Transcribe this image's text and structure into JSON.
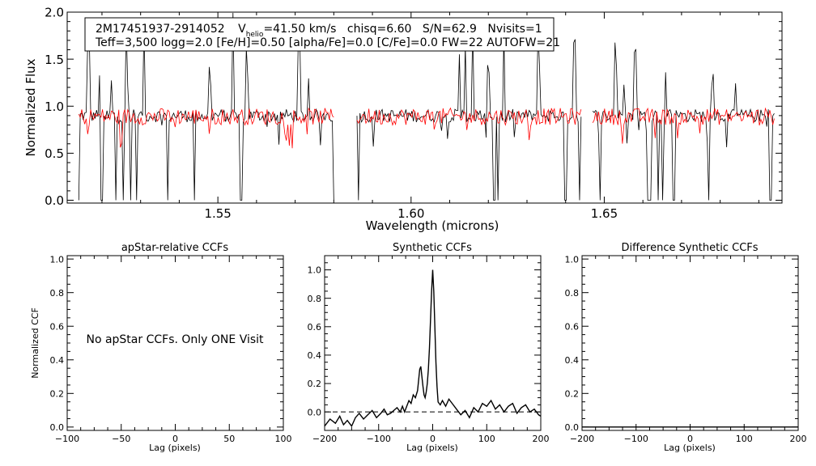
{
  "chart_data": [
    {
      "type": "line",
      "id": "spectrum",
      "header_line1": {
        "star": "2M17451937-2914052",
        "vhelio_prefix": "V",
        "vhelio_sub": "helio",
        "vhelio_value": "=41.50 km/s",
        "chisq": "chisq=6.60",
        "snr": "S/N=62.9",
        "nvisits": "Nvisits=1"
      },
      "header_line2": "Teff=3,500 logg=2.0 [Fe/H]=0.50 [alpha/Fe]=0.0 [C/Fe]=0.0 FW=22 AUTOFW=21",
      "xlabel": "Wavelength (microns)",
      "ylabel": "Normalized Flux",
      "xlim": [
        1.511,
        1.696
      ],
      "ylim": [
        -0.03,
        2.0
      ],
      "xticks": [
        1.55,
        1.6,
        1.65
      ],
      "xtick_labels": [
        "1.55",
        "1.60",
        "1.65"
      ],
      "yticks": [
        0.0,
        0.5,
        1.0,
        1.5,
        2.0
      ],
      "ytick_labels": [
        "0.0",
        "0.5",
        "1.0",
        "1.5",
        "2.0"
      ],
      "chips": [
        [
          1.514,
          1.58
        ],
        [
          1.586,
          1.644
        ],
        [
          1.647,
          1.694
        ]
      ],
      "series": [
        {
          "name": "observed",
          "color": "#000000",
          "mean": 0.9,
          "noise": 0.07
        },
        {
          "name": "model",
          "color": "#ff0000",
          "mean": 0.89,
          "noise": 0.09
        }
      ],
      "spikes": [
        1.5165,
        1.5195,
        1.5225,
        1.5265,
        1.529,
        1.531,
        1.544,
        1.548,
        1.554,
        1.5575,
        1.571,
        1.5735,
        1.6125,
        1.614,
        1.616,
        1.62,
        1.624,
        1.633,
        1.642,
        1.6425,
        1.653,
        1.655,
        1.658,
        1.662,
        1.666,
        1.678,
        1.684
      ],
      "dips": [
        1.514,
        1.52,
        1.5235,
        1.5255,
        1.5275,
        1.529,
        1.537,
        1.544,
        1.556,
        1.58,
        1.5865,
        1.6215,
        1.6225,
        1.64,
        1.6435,
        1.649,
        1.6615,
        1.662,
        1.664,
        1.665,
        1.668,
        1.677,
        1.693
      ]
    },
    {
      "type": "line",
      "id": "apstar-ccf",
      "title": "apStar-relative CCFs",
      "xlabel": "Lag (pixels)",
      "ylabel": "Normalized CCF",
      "xlim": [
        -100,
        100
      ],
      "ylim": [
        -0.02,
        1.02
      ],
      "xticks": [
        -100,
        -50,
        0,
        50,
        100
      ],
      "xtick_labels": [
        "−100",
        "−50",
        "0",
        "50",
        "100"
      ],
      "yticks": [
        0.0,
        0.2,
        0.4,
        0.6,
        0.8,
        1.0
      ],
      "ytick_labels": [
        "0.0",
        "0.2",
        "0.4",
        "0.6",
        "0.8",
        "1.0"
      ],
      "note": "No apStar CCFs.  Only ONE Visit",
      "series": []
    },
    {
      "type": "line",
      "id": "synthetic-ccf",
      "title": "Synthetic CCFs",
      "xlabel": "Lag (pixels)",
      "ylabel": "",
      "xlim": [
        -200,
        200
      ],
      "ylim": [
        -0.13,
        1.1
      ],
      "xticks": [
        -200,
        -100,
        0,
        100,
        200
      ],
      "xtick_labels": [
        "−200",
        "−100",
        "0",
        "100",
        "200"
      ],
      "yticks": [
        0.0,
        0.2,
        0.4,
        0.6,
        0.8,
        1.0
      ],
      "ytick_labels": [
        "0.0",
        "0.2",
        "0.4",
        "0.6",
        "0.8",
        "1.0"
      ],
      "zero_line": true,
      "series": [
        {
          "name": "ccf",
          "color": "#000000",
          "x": [
            -200,
            -190,
            -180,
            -172,
            -165,
            -158,
            -150,
            -143,
            -136,
            -128,
            -120,
            -112,
            -104,
            -96,
            -90,
            -84,
            -78,
            -72,
            -66,
            -60,
            -56,
            -52,
            -48,
            -44,
            -40,
            -36,
            -32,
            -28,
            -24,
            -22,
            -20,
            -18,
            -16,
            -14,
            -12,
            -10,
            -8,
            -6,
            -4,
            -2,
            0,
            2,
            4,
            6,
            8,
            10,
            14,
            18,
            24,
            30,
            36,
            44,
            52,
            60,
            68,
            76,
            84,
            92,
            100,
            108,
            116,
            124,
            132,
            140,
            148,
            156,
            164,
            172,
            180,
            188,
            196,
            200
          ],
          "y": [
            -0.1,
            -0.05,
            -0.08,
            -0.03,
            -0.09,
            -0.06,
            -0.1,
            -0.04,
            -0.01,
            -0.05,
            -0.02,
            0.01,
            -0.04,
            -0.01,
            0.02,
            -0.02,
            -0.01,
            0.01,
            0.03,
            0.0,
            0.04,
            0.0,
            0.04,
            0.08,
            0.06,
            0.12,
            0.1,
            0.15,
            0.3,
            0.32,
            0.25,
            0.18,
            0.12,
            0.1,
            0.14,
            0.2,
            0.3,
            0.45,
            0.65,
            0.85,
            1.0,
            0.85,
            0.6,
            0.35,
            0.18,
            0.07,
            0.05,
            0.08,
            0.04,
            0.09,
            0.06,
            0.02,
            -0.02,
            0.01,
            -0.04,
            0.03,
            0.0,
            0.06,
            0.04,
            0.08,
            0.02,
            0.05,
            0.0,
            0.04,
            0.06,
            -0.01,
            0.03,
            0.05,
            0.0,
            0.02,
            -0.02,
            -0.03
          ]
        }
      ]
    },
    {
      "type": "line",
      "id": "difference-ccf",
      "title": "Difference Synthetic CCFs",
      "xlabel": "Lag (pixels)",
      "ylabel": "",
      "xlim": [
        -200,
        200
      ],
      "ylim": [
        -0.02,
        1.02
      ],
      "xticks": [
        -200,
        -100,
        0,
        100,
        200
      ],
      "xtick_labels": [
        "−200",
        "−100",
        "0",
        "100",
        "200"
      ],
      "yticks": [
        0.0,
        0.2,
        0.4,
        0.6,
        0.8,
        1.0
      ],
      "ytick_labels": [
        "0.0",
        "0.2",
        "0.4",
        "0.6",
        "0.8",
        "1.0"
      ],
      "series": [
        {
          "name": "difference",
          "color": "#000000",
          "x": [
            -200,
            200
          ],
          "y": [
            0.0,
            0.0
          ]
        }
      ]
    }
  ]
}
